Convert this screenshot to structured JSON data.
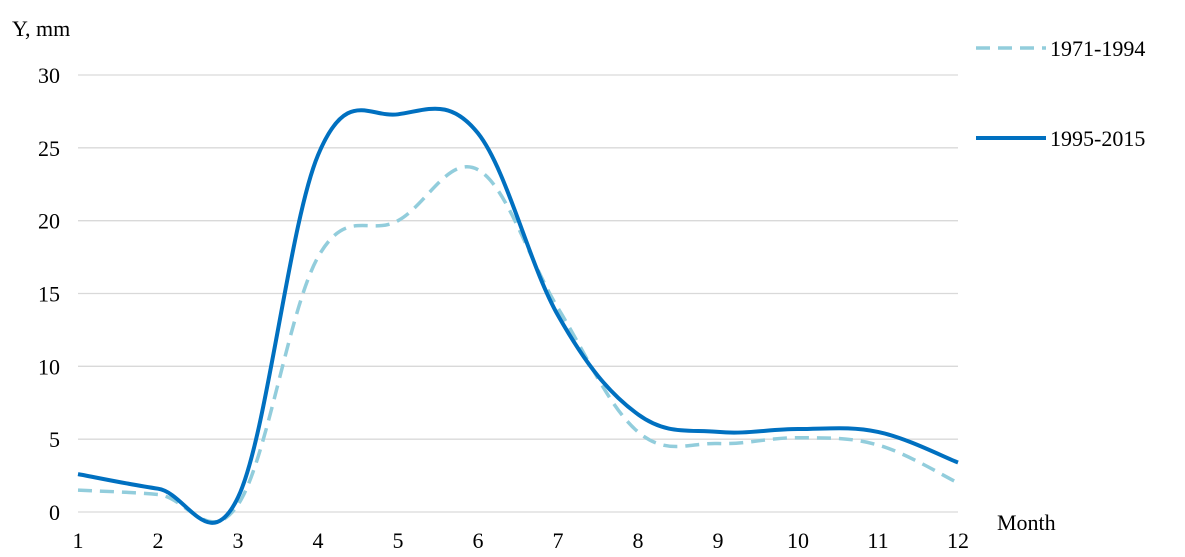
{
  "chart_data": {
    "type": "line",
    "xlabel": "Month",
    "ylabel": "Y, mm",
    "x": [
      1,
      2,
      3,
      4,
      5,
      6,
      7,
      8,
      9,
      10,
      11,
      12
    ],
    "xticks": [
      "1",
      "2",
      "3",
      "4",
      "5",
      "6",
      "7",
      "8",
      "9",
      "10",
      "11",
      "12"
    ],
    "yticks": [
      "0",
      "5",
      "10",
      "15",
      "20",
      "25",
      "30"
    ],
    "ylim": [
      0,
      30
    ],
    "grid": "horizontal",
    "legend": "top-right",
    "series": [
      {
        "name": "1971-1994",
        "style": "dashed",
        "color": "#92cddc",
        "values": [
          1.5,
          1.2,
          0.5,
          17.5,
          20,
          23.5,
          14,
          5.5,
          4.7,
          5.1,
          4.6,
          2.0
        ]
      },
      {
        "name": "1995-2015",
        "style": "solid",
        "color": "#0070c0",
        "values": [
          2.6,
          1.6,
          1.0,
          24.5,
          27.3,
          26,
          13.5,
          6.7,
          5.5,
          5.7,
          5.5,
          3.4
        ]
      }
    ]
  }
}
